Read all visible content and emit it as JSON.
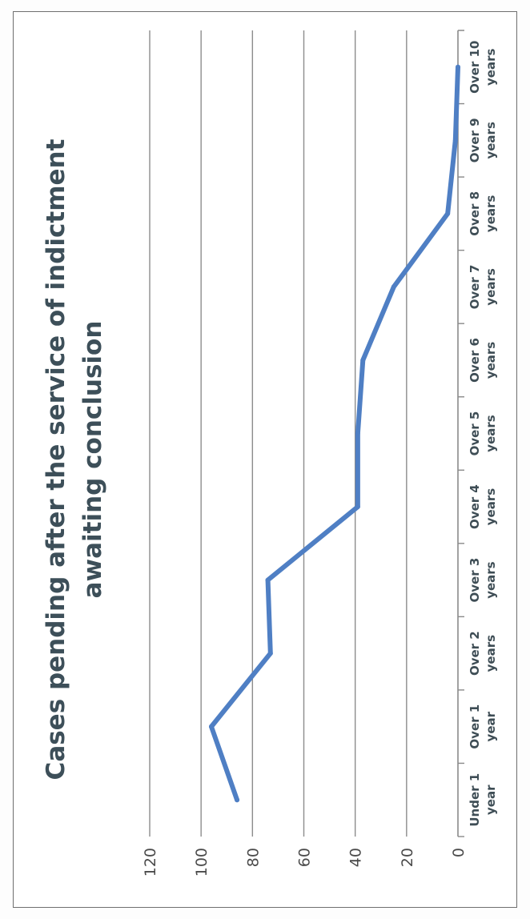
{
  "chart_data": {
    "type": "line",
    "title": "Cases pending after the service of indictment awaiting conclusion",
    "title_lines": [
      "Cases pending after the service of indictment",
      "awaiting conclusion"
    ],
    "categories": [
      "Under 1 year",
      "Over 1 year",
      "Over 2 years",
      "Over 3 years",
      "Over 4 years",
      "Over 5 years",
      "Over 6 years",
      "Over 7 years",
      "Over 8 years",
      "Over 9 years",
      "Over 10 years"
    ],
    "category_lines": [
      [
        "Under 1",
        "year"
      ],
      [
        "Over 1",
        "year"
      ],
      [
        "Over 2",
        "years"
      ],
      [
        "Over 3",
        "years"
      ],
      [
        "Over 4",
        "years"
      ],
      [
        "Over 5",
        "years"
      ],
      [
        "Over 6",
        "years"
      ],
      [
        "Over 7",
        "years"
      ],
      [
        "Over 8",
        "years"
      ],
      [
        "Over 9",
        "years"
      ],
      [
        "Over 10",
        "years"
      ]
    ],
    "series": [
      {
        "values": [
          86,
          96,
          73,
          74,
          39,
          39,
          37,
          25,
          4,
          1,
          0
        ]
      }
    ],
    "ylim": [
      0,
      120
    ],
    "yticks": [
      "0",
      "20",
      "40",
      "60",
      "80",
      "100",
      "120"
    ],
    "xlabel": "",
    "ylabel": "",
    "grid": true,
    "line_color": "#4f7fc4",
    "gridline_color": "#8c8c8c",
    "title_color": "#3d4f59"
  }
}
